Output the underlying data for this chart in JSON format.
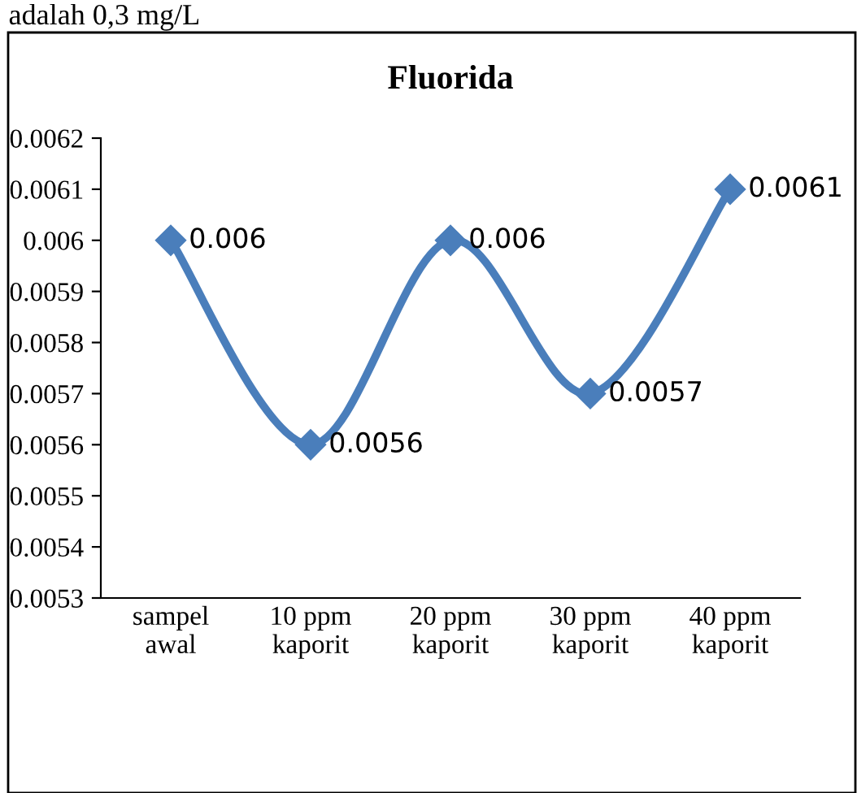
{
  "chart_data": {
    "type": "line",
    "title": "Fluorida",
    "annotations": [
      "adalah 0,3 mg/L"
    ],
    "categories": [
      "sampel\nawal",
      "10 ppm\nkaporit",
      "20 ppm\nkaporit",
      "30 ppm\nkaporit",
      "40 ppm\nkaporit"
    ],
    "values": [
      0.006,
      0.0056,
      0.006,
      0.0057,
      0.0061
    ],
    "color": "#4a7ebb",
    "marker": "diamond",
    "data_labels": true,
    "grid": false,
    "legend": false,
    "ylim": [
      0.0053,
      0.0062
    ],
    "yticks": [
      0.0053,
      0.0054,
      0.0055,
      0.0056,
      0.0057,
      0.0058,
      0.0059,
      0.006,
      0.0061,
      0.0062
    ]
  }
}
